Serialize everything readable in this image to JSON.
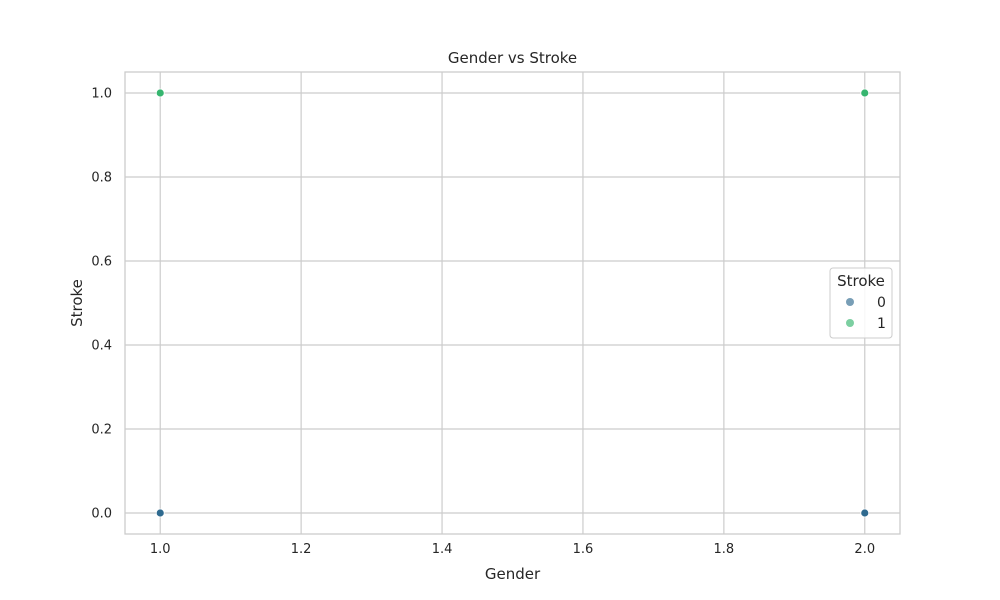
{
  "chart_data": {
    "type": "scatter",
    "title": "Gender vs Stroke",
    "xlabel": "Gender",
    "ylabel": "Stroke",
    "xlim": [
      0.95,
      2.05
    ],
    "ylim": [
      -0.05,
      1.05
    ],
    "xticks": [
      "1.0",
      "1.2",
      "1.4",
      "1.6",
      "1.8",
      "2.0"
    ],
    "yticks": [
      "0.0",
      "0.2",
      "0.4",
      "0.6",
      "0.8",
      "1.0"
    ],
    "grid": true,
    "legend": {
      "title": "Stroke",
      "placement": "center-right",
      "entries": [
        "0",
        "1"
      ]
    },
    "series": [
      {
        "name": "0",
        "color": "#2f6a8f",
        "points": [
          [
            1.0,
            0.0
          ],
          [
            2.0,
            0.0
          ]
        ]
      },
      {
        "name": "1",
        "color": "#36b56f",
        "points": [
          [
            1.0,
            1.0
          ],
          [
            2.0,
            1.0
          ]
        ]
      }
    ]
  }
}
